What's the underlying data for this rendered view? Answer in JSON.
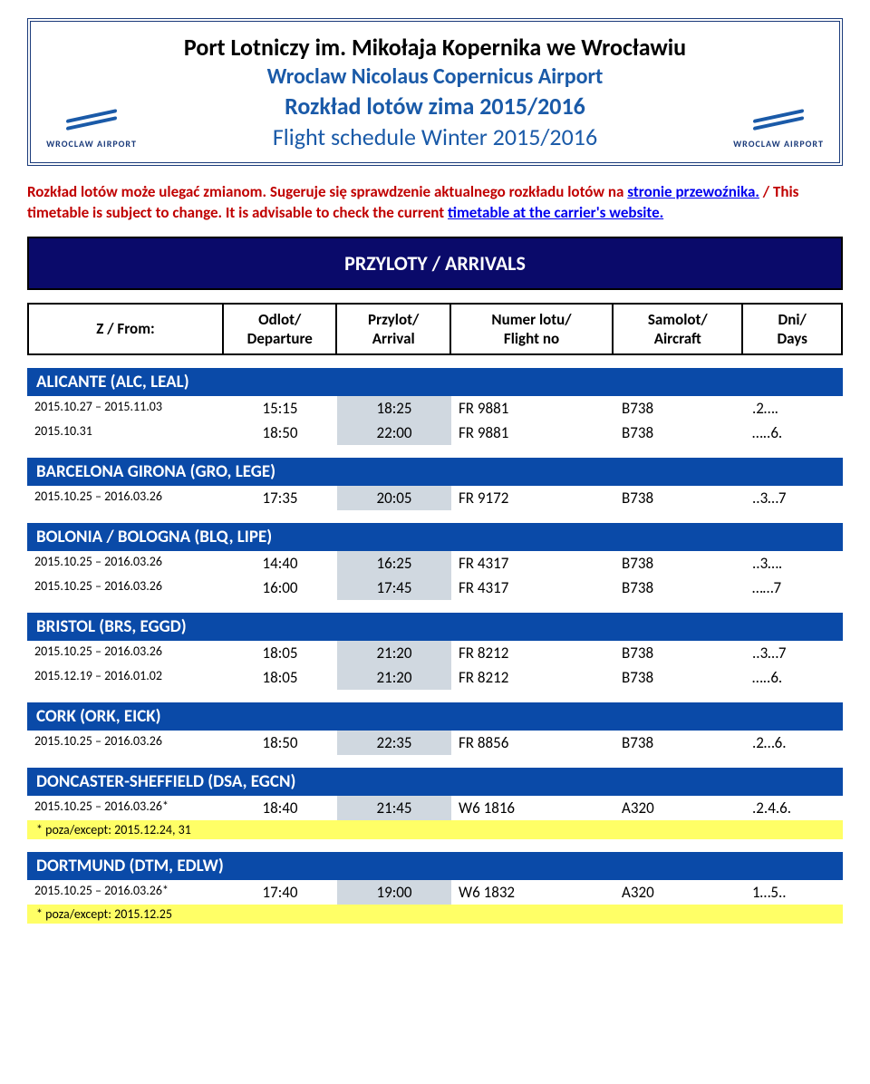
{
  "header": {
    "title_pl": "Port Lotniczy im. Mikołaja Kopernika we Wrocławiu",
    "title_en": "Wroclaw Nicolaus Copernicus Airport",
    "subtitle_pl": "Rozkład lotów zima 2015/2016",
    "subtitle_en": "Flight schedule Winter 2015/2016",
    "logo_text": "WROCLAW AIRPORT"
  },
  "notice": {
    "line1": "Rozkład lotów może ulegać zmianom.",
    "line2a": "Sugeruje się sprawdzenie aktualnego rozkładu lotów na ",
    "line2_link": "stronie przewoźnika.",
    "line2b": " / This timetable is subject to change. It is advisable to check the current ",
    "line3_link": "timetable at the carrier's website."
  },
  "section_title": "PRZYLOTY / ARRIVALS",
  "columns": {
    "from": "Z / From:",
    "dep1": "Odlot/",
    "dep2": "Departure",
    "arr1": "Przylot/",
    "arr2": "Arrival",
    "flight1": "Numer lotu/",
    "flight2": "Flight no",
    "aircraft1": "Samolot/",
    "aircraft2": "Aircraft",
    "days1": "Dni/",
    "days2": "Days"
  },
  "groups": [
    {
      "name": "ALICANTE (ALC, LEAL)",
      "rows": [
        {
          "date": "2015.10.27 – 2015.11.03",
          "dep": "15:15",
          "arr": "18:25",
          "flight": "FR 9881",
          "aircraft": "B738",
          "days": ".2…."
        },
        {
          "date": "2015.10.31",
          "dep": "18:50",
          "arr": "22:00",
          "flight": "FR 9881",
          "aircraft": "B738",
          "days": "…..6."
        }
      ]
    },
    {
      "name": "BARCELONA GIRONA (GRO, LEGE)",
      "rows": [
        {
          "date": "2015.10.25 – 2016.03.26",
          "dep": "17:35",
          "arr": "20:05",
          "flight": "FR 9172",
          "aircraft": "B738",
          "days": "..3…7"
        }
      ]
    },
    {
      "name": "BOLONIA / BOLOGNA (BLQ, LIPE)",
      "rows": [
        {
          "date": "2015.10.25 – 2016.03.26",
          "dep": "14:40",
          "arr": "16:25",
          "flight": "FR 4317",
          "aircraft": "B738",
          "days": "..3…."
        },
        {
          "date": "2015.10.25 – 2016.03.26",
          "dep": "16:00",
          "arr": "17:45",
          "flight": "FR 4317",
          "aircraft": "B738",
          "days": "……7"
        }
      ]
    },
    {
      "name": "BRISTOL (BRS, EGGD)",
      "rows": [
        {
          "date": "2015.10.25 – 2016.03.26",
          "dep": "18:05",
          "arr": "21:20",
          "flight": "FR 8212",
          "aircraft": "B738",
          "days": "..3…7"
        },
        {
          "date": "2015.12.19 – 2016.01.02",
          "dep": "18:05",
          "arr": "21:20",
          "flight": "FR 8212",
          "aircraft": "B738",
          "days": "…..6."
        }
      ]
    },
    {
      "name": "CORK (ORK, EICK)",
      "rows": [
        {
          "date": "2015.10.25 – 2016.03.26",
          "dep": "18:50",
          "arr": "22:35",
          "flight": "FR 8856",
          "aircraft": "B738",
          "days": ".2…6."
        }
      ]
    },
    {
      "name": "DONCASTER-SHEFFIELD (DSA, EGCN)",
      "rows": [
        {
          "date": "2015.10.25 – 2016.03.26*",
          "dep": "18:40",
          "arr": "21:45",
          "flight": "W6 1816",
          "aircraft": "A320",
          "days": ".2.4.6."
        }
      ],
      "note": "* poza/except: 2015.12.24, 31"
    },
    {
      "name": "DORTMUND (DTM, EDLW)",
      "rows": [
        {
          "date": "2015.10.25 – 2016.03.26*",
          "dep": "17:40",
          "arr": "19:00",
          "flight": "W6 1832",
          "aircraft": "A320",
          "days": "1…5.."
        }
      ],
      "note": "* poza/except: 2015.12.25"
    }
  ]
}
